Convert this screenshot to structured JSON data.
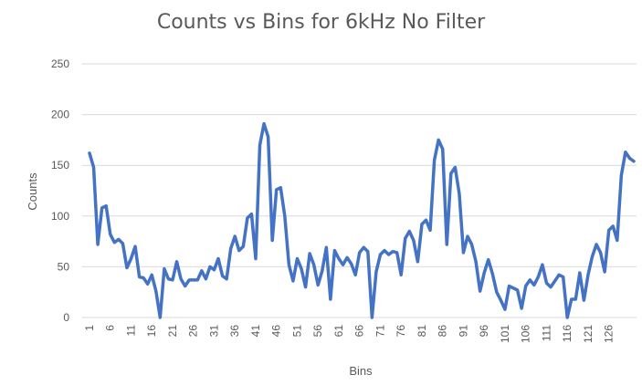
{
  "chart_data": {
    "type": "line",
    "title": "Counts vs Bins for 6kHz No Filter",
    "xlabel": "Bins",
    "ylabel": "Counts",
    "ylim": [
      0,
      250
    ],
    "yticks": [
      "0",
      "50",
      "100",
      "150",
      "200",
      "250"
    ],
    "xticks": [
      "1",
      "6",
      "11",
      "16",
      "21",
      "26",
      "31",
      "36",
      "41",
      "46",
      "51",
      "56",
      "61",
      "66",
      "71",
      "76",
      "81",
      "86",
      "91",
      "96",
      "101",
      "106",
      "111",
      "116",
      "121",
      "126"
    ],
    "grid": "horizontal",
    "line_color": "#4472c4",
    "series": [
      {
        "values": [
          162,
          148,
          72,
          108,
          110,
          82,
          74,
          77,
          73,
          49,
          58,
          70,
          40,
          39,
          33,
          42,
          26,
          0,
          48,
          38,
          37,
          55,
          38,
          31,
          37,
          37,
          37,
          46,
          38,
          50,
          47,
          58,
          41,
          38,
          68,
          80,
          66,
          70,
          98,
          102,
          58,
          170,
          191,
          178,
          76,
          126,
          128,
          100,
          52,
          36,
          58,
          48,
          30,
          63,
          52,
          32,
          46,
          69,
          18,
          66,
          58,
          52,
          59,
          53,
          42,
          64,
          69,
          65,
          0,
          45,
          62,
          66,
          62,
          65,
          64,
          42,
          78,
          85,
          76,
          55,
          92,
          96,
          86,
          155,
          175,
          166,
          72,
          142,
          148,
          122,
          64,
          80,
          72,
          55,
          26,
          44,
          57,
          43,
          25,
          17,
          8,
          31,
          29,
          27,
          9,
          31,
          37,
          32,
          40,
          52,
          34,
          30,
          36,
          42,
          40,
          0,
          18,
          18,
          44,
          17,
          42,
          60,
          72,
          64,
          45,
          86,
          90,
          76,
          140,
          163,
          157,
          154
        ]
      }
    ]
  }
}
